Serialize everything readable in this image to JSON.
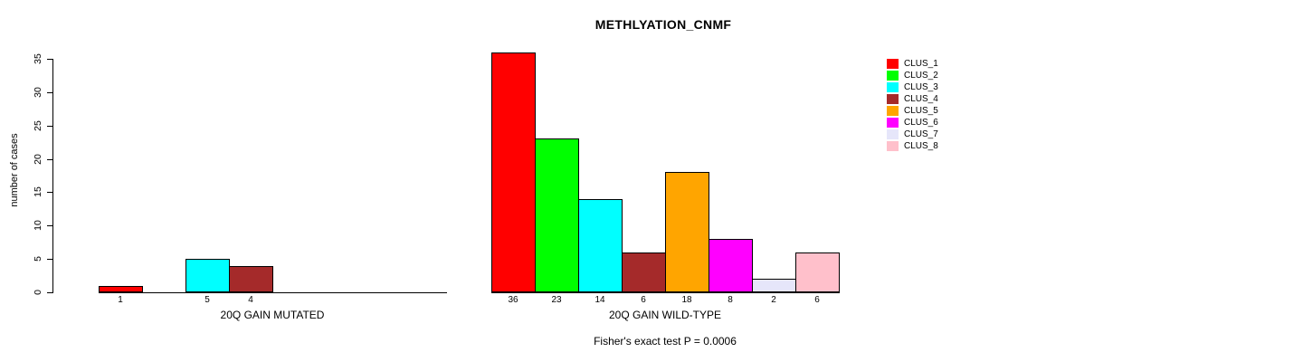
{
  "title": "METHLYATION_CNMF",
  "footer": "Fisher's exact test P = 0.0006",
  "y_axis": {
    "label": "number of cases",
    "ticks": [
      0,
      5,
      10,
      15,
      20,
      25,
      30,
      35
    ]
  },
  "legend": {
    "entries": [
      {
        "label": "CLUS_1",
        "color": "#FF0000"
      },
      {
        "label": "CLUS_2",
        "color": "#00FF00"
      },
      {
        "label": "CLUS_3",
        "color": "#00FFFF"
      },
      {
        "label": "CLUS_4",
        "color": "#A52A2A"
      },
      {
        "label": "CLUS_5",
        "color": "#FFA500"
      },
      {
        "label": "CLUS_6",
        "color": "#FF00FF"
      },
      {
        "label": "CLUS_7",
        "color": "#E6E6FA"
      },
      {
        "label": "CLUS_8",
        "color": "#FFC0CB"
      }
    ]
  },
  "chart_data": {
    "type": "bar",
    "title": "METHLYATION_CNMF",
    "ylabel": "number of cases",
    "ylim": [
      0,
      35
    ],
    "yticks": [
      0,
      5,
      10,
      15,
      20,
      25,
      30,
      35
    ],
    "grid": false,
    "legend_position": "right",
    "categories": [
      "CLUS_1",
      "CLUS_2",
      "CLUS_3",
      "CLUS_4",
      "CLUS_5",
      "CLUS_6",
      "CLUS_7",
      "CLUS_8"
    ],
    "colors": [
      "#FF0000",
      "#00FF00",
      "#00FFFF",
      "#A52A2A",
      "#FFA500",
      "#FF00FF",
      "#E6E6FA",
      "#FFC0CB"
    ],
    "groups": [
      {
        "label": "20Q GAIN MUTATED",
        "values": [
          1,
          0,
          5,
          4,
          0,
          0,
          0,
          0
        ]
      },
      {
        "label": "20Q GAIN WILD-TYPE",
        "values": [
          36,
          23,
          14,
          6,
          18,
          8,
          2,
          6
        ]
      }
    ],
    "bar_value_labels": true,
    "annotation": "Fisher's exact test P = 0.0006"
  }
}
